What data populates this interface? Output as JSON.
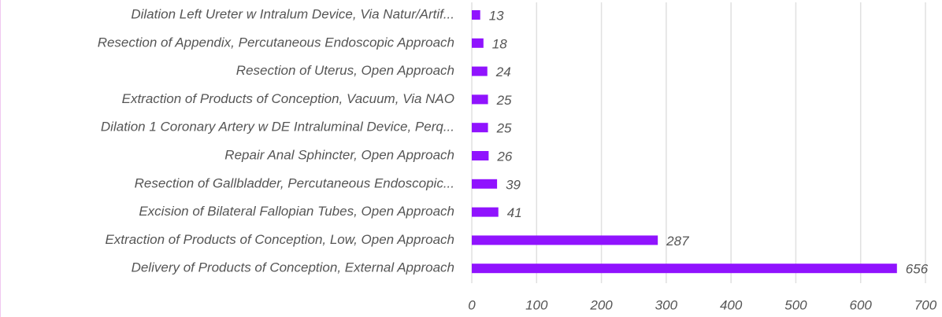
{
  "chart_data": {
    "type": "bar",
    "orientation": "horizontal",
    "categories": [
      "Dilation Left Ureter w Intralum Device, Via Natur/Artif...",
      "Resection of Appendix, Percutaneous Endoscopic Approach",
      "Resection of Uterus, Open Approach",
      "Extraction of Products of Conception, Vacuum, Via NAO",
      "Dilation 1 Coronary Artery w DE Intraluminal Device, Perq...",
      "Repair Anal Sphincter, Open Approach",
      "Resection of Gallbladder, Percutaneous Endoscopic...",
      "Excision of Bilateral Fallopian Tubes, Open Approach",
      "Extraction of Products of Conception, Low, Open Approach",
      "Delivery of Products of Conception, External Approach"
    ],
    "values": [
      13,
      18,
      24,
      25,
      25,
      26,
      39,
      41,
      287,
      656
    ],
    "color": "#9013fe",
    "xlim": [
      0,
      700
    ],
    "xticks": [
      0,
      100,
      200,
      300,
      400,
      500,
      600,
      700
    ],
    "grid": true
  }
}
